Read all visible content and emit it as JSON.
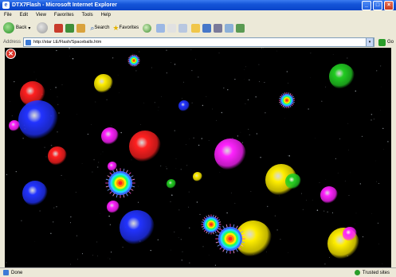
{
  "window": {
    "title": "DTX7Flash - Microsoft Internet Explorer",
    "controls": [
      "_",
      "□",
      "×"
    ]
  },
  "menubar": {
    "items": [
      "File",
      "Edit",
      "View",
      "Favorites",
      "Tools",
      "Help"
    ]
  },
  "toolbar": {
    "back_label": "Back",
    "search_label": "Search",
    "favorites_label": "Favorites"
  },
  "address": {
    "label": "Address",
    "url": "http://star LE/Flash/Spaceballs.htm",
    "go_label": "Go"
  },
  "content": {
    "background": "#000000",
    "balls": [
      {
        "color": "#ff2020",
        "style": "glow"
      },
      {
        "color": "#2233ff",
        "style": "glow"
      },
      {
        "color": "#ff2020",
        "style": "glow"
      },
      {
        "color": "#ff2020",
        "style": "glow"
      },
      {
        "color": "#2233ff",
        "style": "glow"
      },
      {
        "color": "#2233ff",
        "style": "glow"
      },
      {
        "color": "#2233ff",
        "style": "glow"
      },
      {
        "color": "#ffee00",
        "style": "glow"
      },
      {
        "color": "#ffee00",
        "style": "glow"
      },
      {
        "color": "#ffee00",
        "style": "glow"
      },
      {
        "color": "#ffee00",
        "style": "glow"
      },
      {
        "color": "#ffee00",
        "style": "glow"
      },
      {
        "color": "#ff22ff",
        "style": "glow"
      },
      {
        "color": "#ff22ff",
        "style": "glow"
      },
      {
        "color": "#ff22ff",
        "style": "glow"
      },
      {
        "color": "#ff22ff",
        "style": "glow"
      },
      {
        "color": "#ff22ff",
        "style": "glow"
      },
      {
        "color": "#ff22ff",
        "style": "glow"
      },
      {
        "color": "#ff22ff",
        "style": "glow"
      },
      {
        "color": "#22cc22",
        "style": "glow"
      },
      {
        "color": "#22cc22",
        "style": "glow"
      },
      {
        "color": "#22cc22",
        "style": "glow"
      },
      {
        "color": "#ffffff",
        "style": "rainbow"
      },
      {
        "color": "#ffffff",
        "style": "rainbow"
      },
      {
        "color": "#ffffff",
        "style": "rainbow"
      },
      {
        "color": "#ffffff",
        "style": "rainbow"
      },
      {
        "color": "#ffffff",
        "style": "rainbow"
      }
    ]
  },
  "statusbar": {
    "text": "Done",
    "zone": "Trusted sites"
  }
}
